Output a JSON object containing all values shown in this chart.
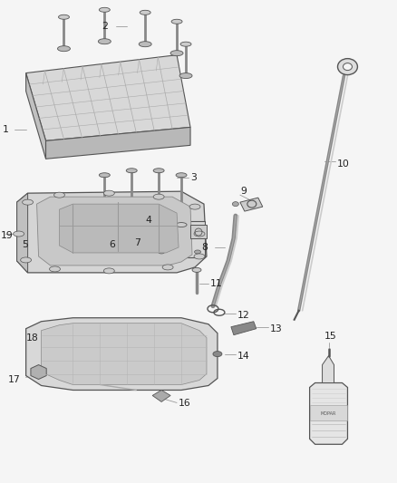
{
  "background_color": "#f5f5f5",
  "line_color": "#555555",
  "label_color": "#222222",
  "leader_color": "#999999",
  "part_face": "#e0e0e0",
  "part_dark": "#aaaaaa",
  "part_mid": "#cccccc"
}
